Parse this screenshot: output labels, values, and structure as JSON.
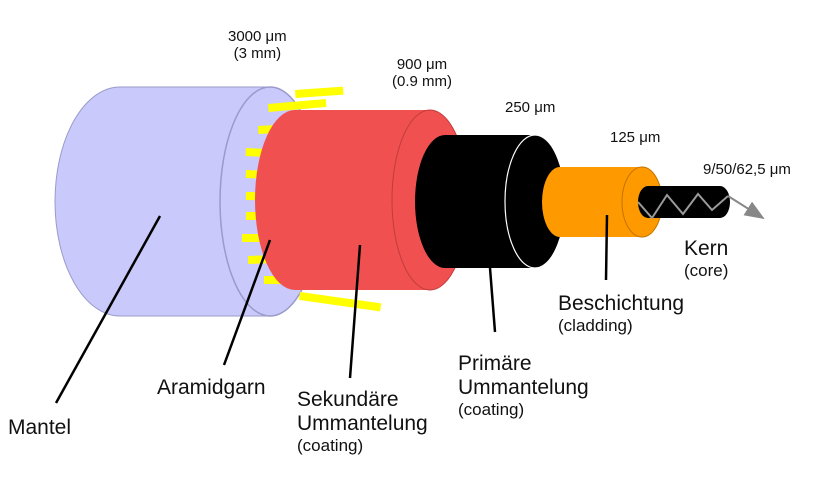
{
  "colors": {
    "jacket": "#c9c9fb",
    "jacket_edge": "#9a9acb",
    "aramid": "#ffff00",
    "secondary": "#f05050",
    "primary": "#000000",
    "cladding": "#ff9900",
    "core": "#000000",
    "leader": "#000000"
  },
  "dimensions": {
    "d3000_line1": "3000 μm",
    "d3000_line2": "(3 mm)",
    "d900_line1": "900 μm",
    "d900_line2": "(0.9 mm)",
    "d250": "250 μm",
    "d125": "125 μm",
    "dcore": "9/50/62,5 μm"
  },
  "labels": {
    "mantel": "Mantel",
    "aramid": "Aramidgarn",
    "secondary_line1": "Sekundäre",
    "secondary_line2": "Ummantelung",
    "secondary_note": "(coating)",
    "primary_line1": "Primäre",
    "primary_line2": "Ummantelung",
    "primary_note": "(coating)",
    "cladding_line1": "Beschichtung",
    "cladding_note": "(cladding)",
    "core_line1": "Kern",
    "core_note": "(core)"
  }
}
